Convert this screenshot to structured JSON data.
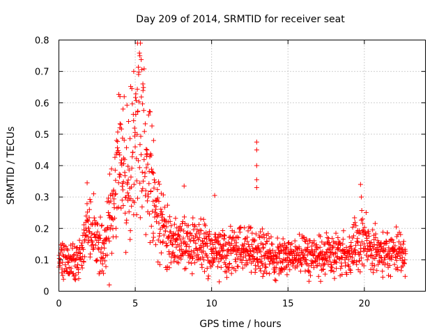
{
  "chart_data": {
    "type": "scatter",
    "title": "Day 209 of 2014, SRMTID for receiver seat",
    "xlabel": "GPS time / hours",
    "ylabel": "SRMTID / TECUs",
    "xlim": [
      0,
      24
    ],
    "ylim": [
      0,
      0.8
    ],
    "xticks": [
      0,
      5,
      10,
      15,
      20
    ],
    "xtick_labels": [
      "0",
      "5",
      "10",
      "15",
      "20"
    ],
    "yticks": [
      0,
      0.1,
      0.2,
      0.3,
      0.4,
      0.5,
      0.6,
      0.7,
      0.8
    ],
    "ytick_labels": [
      "0",
      "0.1",
      "0.2",
      "0.3",
      "0.4",
      "0.5",
      "0.6",
      "0.7",
      "0.8"
    ],
    "grid": true,
    "marker": "+",
    "color": "#ff0000",
    "x_range_of_data": [
      0,
      22.7
    ],
    "trend": [
      {
        "x": 0.0,
        "y": 0.12
      },
      {
        "x": 0.5,
        "y": 0.09
      },
      {
        "x": 1.0,
        "y": 0.1
      },
      {
        "x": 1.5,
        "y": 0.12
      },
      {
        "x": 1.9,
        "y": 0.2
      },
      {
        "x": 2.5,
        "y": 0.15
      },
      {
        "x": 3.0,
        "y": 0.15
      },
      {
        "x": 3.5,
        "y": 0.25
      },
      {
        "x": 4.0,
        "y": 0.42
      },
      {
        "x": 4.5,
        "y": 0.35
      },
      {
        "x": 5.0,
        "y": 0.42
      },
      {
        "x": 5.3,
        "y": 0.6
      },
      {
        "x": 5.7,
        "y": 0.4
      },
      {
        "x": 6.2,
        "y": 0.3
      },
      {
        "x": 7.0,
        "y": 0.17
      },
      {
        "x": 8.0,
        "y": 0.15
      },
      {
        "x": 9.0,
        "y": 0.14
      },
      {
        "x": 10.0,
        "y": 0.13
      },
      {
        "x": 11.0,
        "y": 0.13
      },
      {
        "x": 12.0,
        "y": 0.13
      },
      {
        "x": 13.0,
        "y": 0.13
      },
      {
        "x": 14.0,
        "y": 0.11
      },
      {
        "x": 15.0,
        "y": 0.11
      },
      {
        "x": 16.0,
        "y": 0.12
      },
      {
        "x": 17.0,
        "y": 0.11
      },
      {
        "x": 18.0,
        "y": 0.13
      },
      {
        "x": 19.0,
        "y": 0.12
      },
      {
        "x": 19.8,
        "y": 0.17
      },
      {
        "x": 20.5,
        "y": 0.13
      },
      {
        "x": 21.5,
        "y": 0.12
      },
      {
        "x": 22.7,
        "y": 0.12
      }
    ],
    "spikes": [
      {
        "x": 1.85,
        "y": 0.345
      },
      {
        "x": 2.0,
        "y": 0.26
      },
      {
        "x": 3.3,
        "y": 0.02
      },
      {
        "x": 4.0,
        "y": 0.62
      },
      {
        "x": 4.2,
        "y": 0.58
      },
      {
        "x": 4.9,
        "y": 0.7
      },
      {
        "x": 5.15,
        "y": 0.79
      },
      {
        "x": 5.3,
        "y": 0.75
      },
      {
        "x": 5.5,
        "y": 0.66
      },
      {
        "x": 6.2,
        "y": 0.48
      },
      {
        "x": 8.2,
        "y": 0.335
      },
      {
        "x": 10.2,
        "y": 0.305
      },
      {
        "x": 10.5,
        "y": 0.03
      },
      {
        "x": 12.95,
        "y": 0.475
      },
      {
        "x": 12.95,
        "y": 0.45
      },
      {
        "x": 12.95,
        "y": 0.4
      },
      {
        "x": 12.95,
        "y": 0.355
      },
      {
        "x": 12.95,
        "y": 0.33
      },
      {
        "x": 19.75,
        "y": 0.34
      },
      {
        "x": 19.8,
        "y": 0.3
      }
    ],
    "noise_seed": 20140728
  }
}
